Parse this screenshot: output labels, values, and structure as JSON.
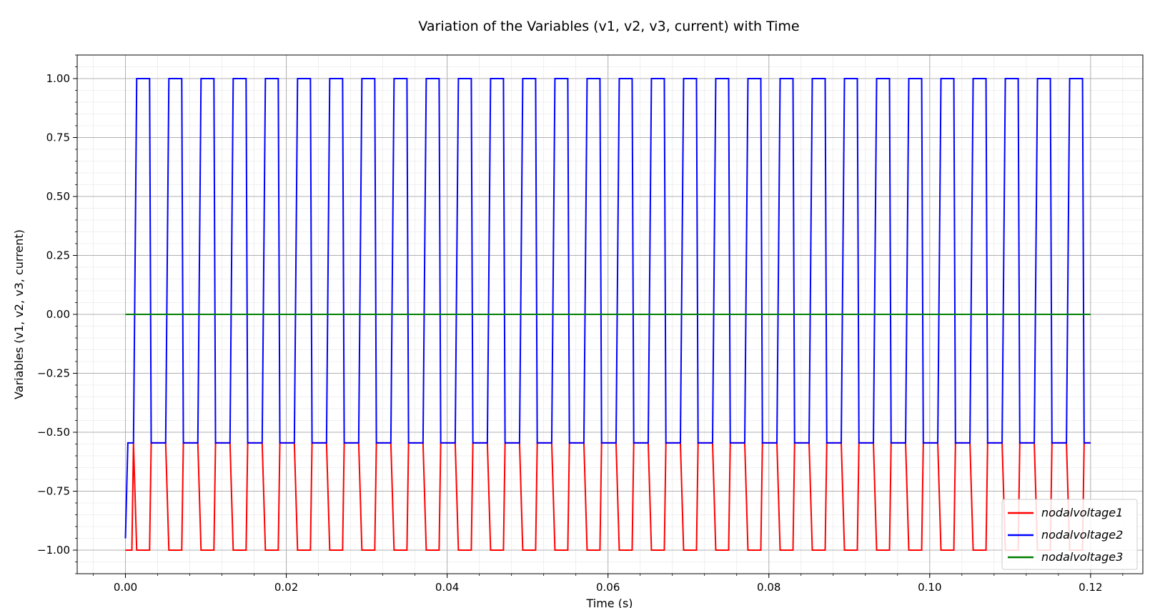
{
  "chart_data": {
    "type": "line",
    "title": "Variation of the Variables (v1, v2, v3, current) with Time",
    "xlabel": "Time (s)",
    "ylabel": "Variables (v1, v2, v3, current)",
    "xlim": [
      -0.006,
      0.1265
    ],
    "ylim": [
      -1.1,
      1.1
    ],
    "x_ticks": [
      0.0,
      0.02,
      0.04,
      0.06,
      0.08,
      0.1,
      0.12
    ],
    "x_tick_labels": [
      "0.00",
      "0.02",
      "0.04",
      "0.06",
      "0.08",
      "0.10",
      "0.12"
    ],
    "y_ticks": [
      1.0,
      0.75,
      0.5,
      0.25,
      0.0,
      -0.25,
      -0.5,
      -0.75,
      -1.0
    ],
    "y_tick_labels": [
      "1.00",
      "0.75",
      "0.50",
      "0.25",
      "0.00",
      "−0.25",
      "−0.50",
      "−0.75",
      "−1.00"
    ],
    "grid": "major and minor",
    "legend_position": "lower right",
    "period": 0.004,
    "cycles": 30,
    "time_range": [
      0,
      0.12
    ],
    "series": [
      {
        "name": "nodalvoltage1",
        "color": "#ff0000",
        "levels": [
          -1.0,
          -0.545
        ],
        "duty_high": 0.54,
        "description": "square wave between -1.00 and -0.545"
      },
      {
        "name": "nodalvoltage2",
        "color": "#0000ff",
        "levels": [
          -0.545,
          1.0
        ],
        "duty_high": 0.54,
        "initial": -0.95,
        "description": "square wave between -0.545 and 1.00, starting at -0.95"
      },
      {
        "name": "nodalvoltage3",
        "color": "#008000",
        "constant": 0.0
      }
    ]
  }
}
